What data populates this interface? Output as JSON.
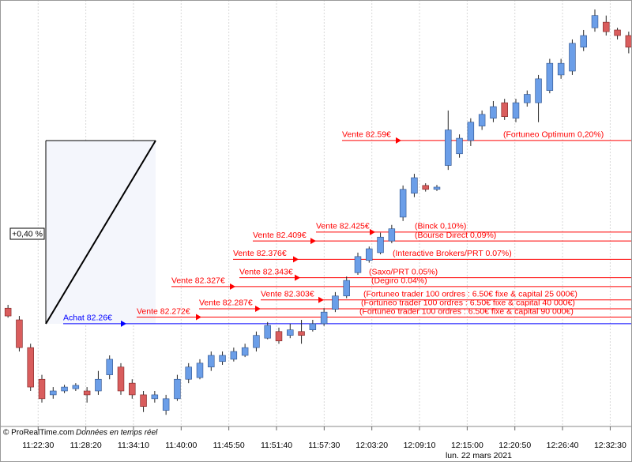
{
  "chart_data": {
    "type": "candlestick",
    "credit": "© ProRealTime.com",
    "credit_note": "Données en temps réel",
    "date_label": "lun. 22 mars 2021",
    "xlim": [
      "11:17:50",
      "12:35:10"
    ],
    "xticks": [
      "11:22:30",
      "11:28:20",
      "11:34:10",
      "11:40:00",
      "11:45:50",
      "11:51:40",
      "11:57:30",
      "12:03:20",
      "12:09:10",
      "12:15:00",
      "12:20:50",
      "12:26:40",
      "12:32:30"
    ],
    "ylim": [
      82.075,
      82.843
    ],
    "grid": true,
    "up_color": "#6b9ee8",
    "down_color": "#d95d5d",
    "candles": {
      "open": [
        82.288,
        82.267,
        82.217,
        82.16,
        82.132,
        82.139,
        82.143,
        82.139,
        82.139,
        82.168,
        82.182,
        82.153,
        82.132,
        82.125,
        82.104,
        82.125,
        82.16,
        82.163,
        82.182,
        82.192,
        82.196,
        82.203,
        82.217,
        82.234,
        82.246,
        82.239,
        82.246,
        82.249,
        82.26,
        82.286,
        82.31,
        82.352,
        82.374,
        82.388,
        82.409,
        82.452,
        82.495,
        82.509,
        82.502,
        82.545,
        82.566,
        82.59,
        82.616,
        82.63,
        82.658,
        82.63,
        82.658,
        82.658,
        82.68,
        82.708,
        82.715,
        82.758,
        82.793,
        82.803,
        82.789,
        82.779
      ],
      "high": [
        82.294,
        82.274,
        82.224,
        82.168,
        82.146,
        82.15,
        82.153,
        82.146,
        82.175,
        82.203,
        82.189,
        82.16,
        82.139,
        82.139,
        82.132,
        82.168,
        82.189,
        82.196,
        82.21,
        82.21,
        82.217,
        82.224,
        82.246,
        82.263,
        82.253,
        82.26,
        82.267,
        82.267,
        82.288,
        82.317,
        82.345,
        82.388,
        82.399,
        82.424,
        82.438,
        82.509,
        82.53,
        82.513,
        82.51,
        82.644,
        82.601,
        82.63,
        82.644,
        82.661,
        82.665,
        82.665,
        82.68,
        82.708,
        82.737,
        82.737,
        82.772,
        82.789,
        82.826,
        82.815,
        82.793,
        82.786
      ],
      "low": [
        82.271,
        82.21,
        82.139,
        82.118,
        82.125,
        82.135,
        82.139,
        82.118,
        82.132,
        82.16,
        82.132,
        82.125,
        82.101,
        82.118,
        82.096,
        82.121,
        82.153,
        82.16,
        82.175,
        82.186,
        82.192,
        82.2,
        82.21,
        82.232,
        82.224,
        82.234,
        82.224,
        82.246,
        82.256,
        82.281,
        82.306,
        82.348,
        82.37,
        82.385,
        82.405,
        82.445,
        82.488,
        82.498,
        82.499,
        82.537,
        82.559,
        82.58,
        82.609,
        82.623,
        82.627,
        82.623,
        82.651,
        82.623,
        82.675,
        82.701,
        82.708,
        82.751,
        82.786,
        82.779,
        82.772,
        82.747
      ],
      "close": [
        82.274,
        82.217,
        82.146,
        82.125,
        82.139,
        82.146,
        82.149,
        82.132,
        82.16,
        82.196,
        82.139,
        82.132,
        82.111,
        82.132,
        82.125,
        82.16,
        82.182,
        82.189,
        82.203,
        82.203,
        82.21,
        82.217,
        82.239,
        82.257,
        82.229,
        82.249,
        82.239,
        82.26,
        82.281,
        82.31,
        82.338,
        82.381,
        82.395,
        82.416,
        82.431,
        82.502,
        82.523,
        82.502,
        82.506,
        82.609,
        82.594,
        82.623,
        82.637,
        82.651,
        82.633,
        82.658,
        82.673,
        82.701,
        82.729,
        82.729,
        82.765,
        82.779,
        82.815,
        82.786,
        82.779,
        82.758
      ]
    },
    "levels": [
      {
        "label": "Vente 82.59€",
        "value": 82.59,
        "color": "#ff0000",
        "note": "(Fortuneo Optimum 0,20%)"
      },
      {
        "label": "Vente 82.425€",
        "value": 82.425,
        "color": "#ff0000",
        "note": "(Binck 0,10%)"
      },
      {
        "label": "Vente 82.409€",
        "value": 82.409,
        "color": "#ff0000",
        "note": "(Bourse Direct 0,09%)"
      },
      {
        "label": "Vente 82.376€",
        "value": 82.376,
        "color": "#ff0000",
        "note": "(Interactive Brokers/PRT 0.07%)"
      },
      {
        "label": "Vente 82.343€",
        "value": 82.343,
        "color": "#ff0000",
        "note": "(Saxo/PRT 0.05%)"
      },
      {
        "label": "Vente 82.327€",
        "value": 82.327,
        "color": "#ff0000",
        "note": "(Degiro 0.04%)"
      },
      {
        "label": "Vente 82.303€",
        "value": 82.303,
        "color": "#ff0000",
        "note": "(Fortuneo trader 100 ordres : 6.50€ fixe & capital 25 000€)"
      },
      {
        "label": "Vente 82.287€",
        "value": 82.287,
        "color": "#ff0000",
        "note": "(Fortuneo trader 100 ordres : 6.50€ fixe & capital 40 000€)"
      },
      {
        "label": "Vente 82.272€",
        "value": 82.272,
        "color": "#ff0000",
        "note": "(Fortuneo trader 100 ordres : 6.50€ fixe & capital 90 000€)"
      },
      {
        "label": "Achat 82.26€",
        "value": 82.26,
        "color": "#0000ff"
      }
    ],
    "annotation": "+0,40 %"
  }
}
